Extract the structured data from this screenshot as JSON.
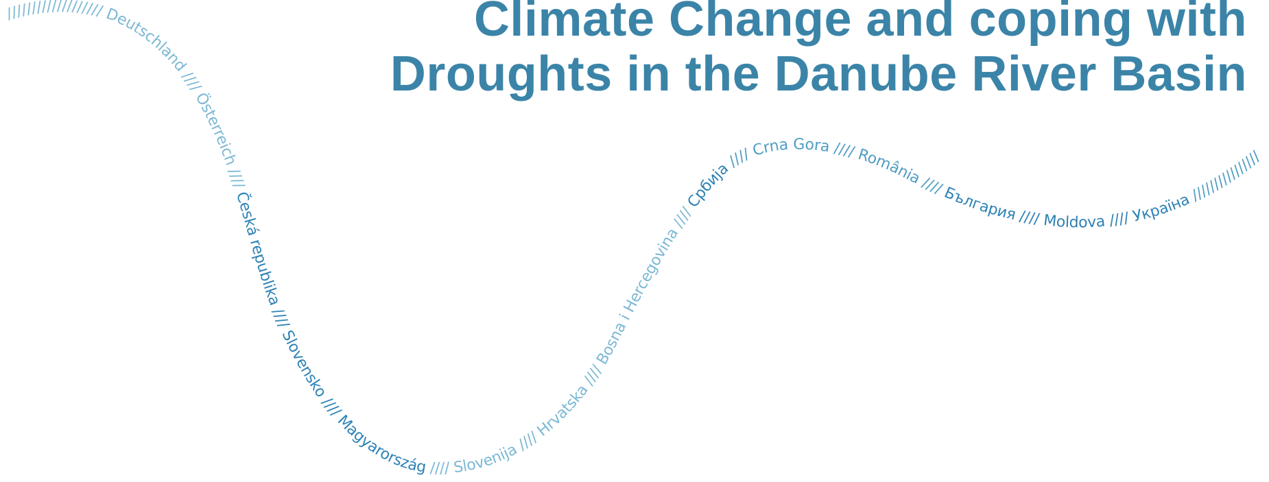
{
  "title": {
    "line1": "Climate Change and coping with",
    "line2": "Droughts in the Danube River Basin"
  },
  "river": {
    "segments": [
      {
        "text": "/////////////////// Deutschland //// Österreich ////",
        "tone": "light"
      },
      {
        "text": " Česká republika //// Slovensko //// Magyarország ",
        "tone": "dark"
      },
      {
        "text": "//// Slovenija //// Hrvatska //// Bosna i Hercegovina ////",
        "tone": "light"
      },
      {
        "text": " Србија ",
        "tone": "dark"
      },
      {
        "text": "//// Crna Gora //// România ////",
        "tone": "medium"
      },
      {
        "text": " България //// Moldova //// Україна ",
        "tone": "dark"
      },
      {
        "text": "////////////////",
        "tone": "medium"
      }
    ]
  },
  "colors": {
    "title": "#3b84a8",
    "light": "#7bb8d4",
    "medium": "#4f9dc3",
    "dark": "#2d82b5"
  }
}
